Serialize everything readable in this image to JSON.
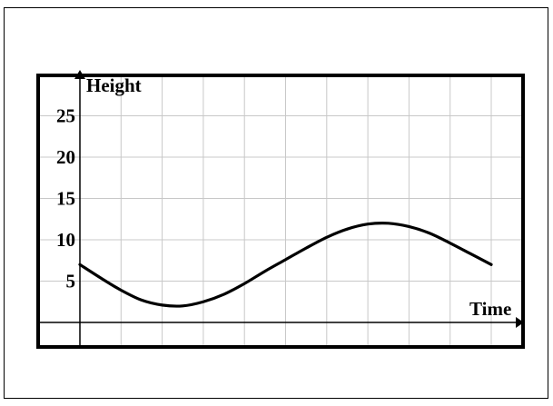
{
  "chart_data": {
    "type": "line",
    "title": "",
    "xlabel": "Time",
    "ylabel": "Height",
    "xlim": [
      0,
      10.5
    ],
    "ylim": [
      -3,
      30
    ],
    "grid": true,
    "ytick_labels": [
      5,
      10,
      15,
      20,
      25
    ],
    "series": [
      {
        "x": [
          0,
          0.5,
          1,
          1.5,
          2,
          2.5,
          3,
          3.5,
          4,
          4.5,
          5,
          5.5,
          6,
          6.5,
          7,
          7.5,
          8,
          8.5,
          9,
          9.5,
          10
        ],
        "y": [
          7,
          5.4,
          3.9,
          2.7,
          2.1,
          2.0,
          2.5,
          3.4,
          4.7,
          6.2,
          7.6,
          9.0,
          10.3,
          11.3,
          11.9,
          12.0,
          11.6,
          10.8,
          9.6,
          8.3,
          7.0
        ]
      }
    ],
    "colors": {
      "line": "#000000",
      "grid": "#c8c8c8",
      "axis": "#000000",
      "frame": "#000000"
    }
  }
}
